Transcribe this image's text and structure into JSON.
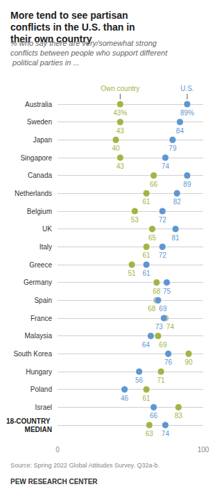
{
  "chart_data": {
    "type": "scatter",
    "orientation": "horizontal",
    "title": "More tend to see partisan conflicts in the U.S. than in their own country",
    "subtitle": "% who say there are very/somewhat strong conflicts between people who support different political parties in ...",
    "source": "Source: Spring 2022 Global Attitudes Survey. Q32a-b.",
    "credit": "PEW RESEARCH CENTER",
    "categories": [
      "Australia",
      "Sweden",
      "Japan",
      "Singapore",
      "Canada",
      "Netherlands",
      "Belgium",
      "UK",
      "Italy",
      "Greece",
      "Germany",
      "Spain",
      "France",
      "Malaysia",
      "South Korea",
      "Hungary",
      "Poland",
      "Israel",
      "18-COUNTRY MEDIAN"
    ],
    "series": [
      {
        "name": "Own country",
        "color": "#a3b446",
        "values": [
          43,
          43,
          40,
          43,
          66,
          61,
          53,
          65,
          61,
          51,
          68,
          68,
          74,
          69,
          90,
          71,
          61,
          83,
          63
        ],
        "value_labels": [
          "43%",
          "43",
          "40",
          "43",
          "66",
          "61",
          "53",
          "65",
          "61",
          "51",
          "68",
          "68",
          "74",
          "69",
          "90",
          "71",
          "61",
          "83",
          "63"
        ]
      },
      {
        "name": "U.S.",
        "color": "#5f96d2",
        "values": [
          89,
          84,
          79,
          74,
          89,
          82,
          72,
          81,
          72,
          61,
          75,
          69,
          73,
          64,
          76,
          56,
          46,
          66,
          74
        ],
        "value_labels": [
          "89%",
          "84",
          "79",
          "74",
          "89",
          "82",
          "72",
          "81",
          "72",
          "61",
          "75",
          "69",
          "73",
          "64",
          "76",
          "56",
          "46",
          "66",
          "74"
        ]
      }
    ],
    "xlim": [
      0,
      100
    ],
    "xticks": [
      0,
      100
    ],
    "grid": true,
    "data_labels": true,
    "marker": "circle"
  }
}
